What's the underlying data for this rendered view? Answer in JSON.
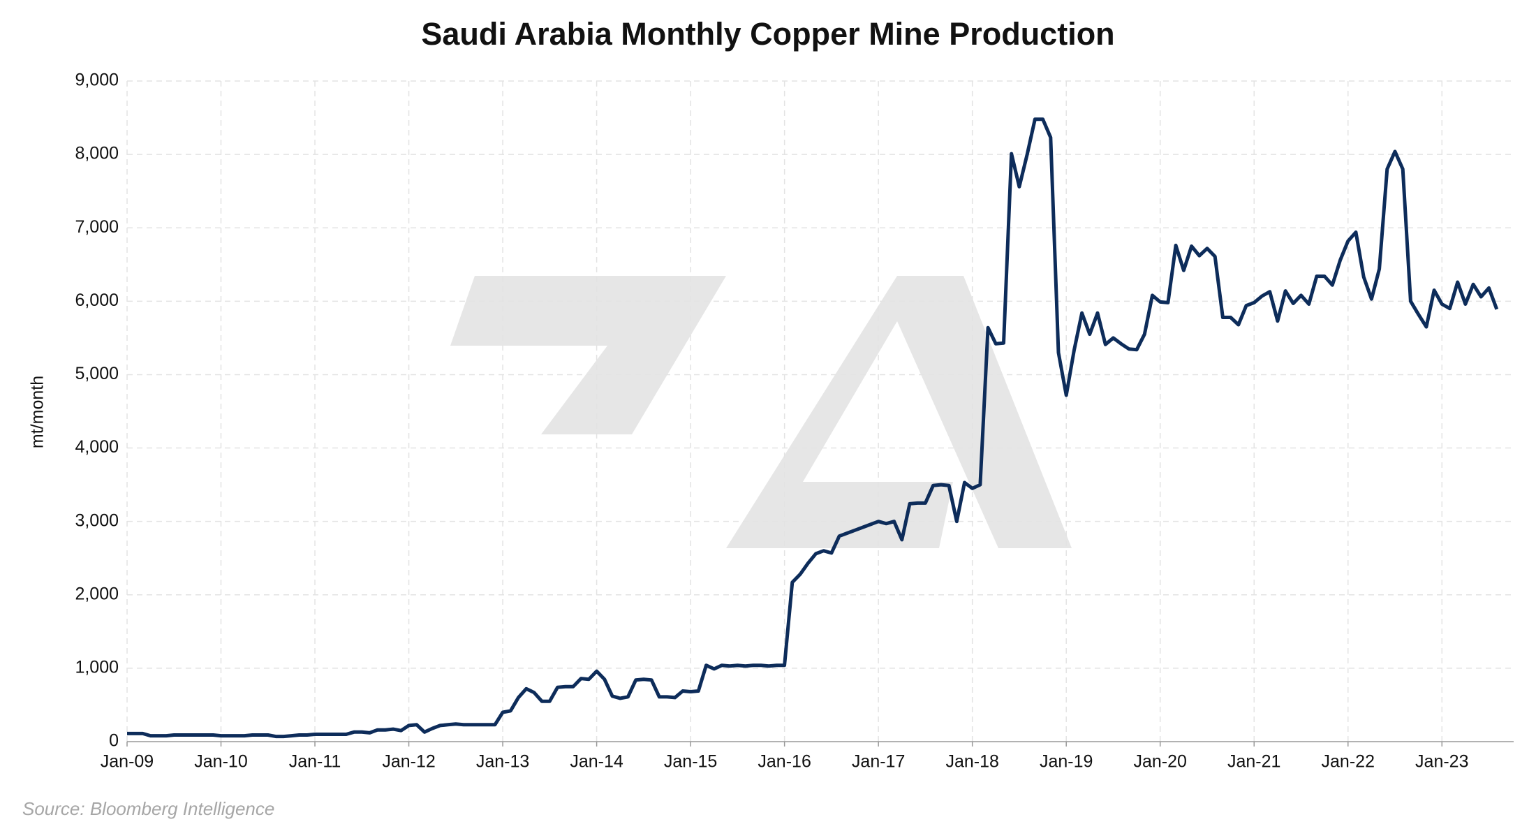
{
  "chart_data": {
    "type": "line",
    "title": "Saudi Arabia Monthly Copper Mine Production",
    "ylabel": "mt/month",
    "source": "Source: Bloomberg Intelligence",
    "color": "#0d2c5a",
    "grid": true,
    "ylim": [
      0,
      9000
    ],
    "yticks": [
      0,
      {
        "value": 1000,
        "label": "1,000"
      },
      {
        "value": 2000,
        "label": "2,000"
      },
      {
        "value": 3000,
        "label": "3,000"
      },
      {
        "value": 4000,
        "label": "4,000"
      },
      {
        "value": 5000,
        "label": "5,000"
      },
      {
        "value": 6000,
        "label": "6,000"
      },
      {
        "value": 7000,
        "label": "7,000"
      },
      {
        "value": 8000,
        "label": "8,000"
      },
      {
        "value": 9000,
        "label": "9,000"
      }
    ],
    "categories": [
      "Jan-09",
      null,
      null,
      null,
      null,
      null,
      null,
      null,
      null,
      null,
      null,
      null,
      "Jan-10",
      null,
      null,
      null,
      null,
      null,
      null,
      null,
      null,
      null,
      null,
      null,
      "Jan-11",
      null,
      null,
      null,
      null,
      null,
      null,
      null,
      null,
      null,
      null,
      null,
      "Jan-12",
      null,
      null,
      null,
      null,
      null,
      null,
      null,
      null,
      null,
      null,
      null,
      "Jan-13",
      null,
      null,
      null,
      null,
      null,
      null,
      null,
      null,
      null,
      null,
      null,
      "Jan-14",
      null,
      null,
      null,
      null,
      null,
      null,
      null,
      null,
      null,
      null,
      null,
      "Jan-15",
      null,
      null,
      null,
      null,
      null,
      null,
      null,
      null,
      null,
      null,
      null,
      "Jan-16",
      null,
      null,
      null,
      null,
      null,
      null,
      null,
      null,
      null,
      null,
      null,
      "Jan-17",
      null,
      null,
      null,
      null,
      null,
      null,
      null,
      null,
      null,
      null,
      null,
      "Jan-18",
      null,
      null,
      null,
      null,
      null,
      null,
      null,
      null,
      null,
      null,
      null,
      "Jan-19",
      null,
      null,
      null,
      null,
      null,
      null,
      null,
      null,
      null,
      null,
      null,
      "Jan-20",
      null,
      null,
      null,
      null,
      null,
      null,
      null,
      null,
      null,
      null,
      null,
      "Jan-21",
      null,
      null,
      null,
      null,
      null,
      null,
      null,
      null,
      null,
      null,
      null,
      "Jan-22",
      null,
      null,
      null,
      null,
      null,
      null,
      null,
      null,
      null,
      null,
      null,
      "Jan-23",
      null,
      null,
      null,
      null,
      null,
      null,
      null
    ],
    "values": [
      110,
      110,
      110,
      80,
      80,
      80,
      90,
      90,
      90,
      90,
      90,
      90,
      80,
      80,
      80,
      80,
      90,
      90,
      90,
      70,
      70,
      80,
      90,
      90,
      100,
      100,
      100,
      100,
      100,
      130,
      130,
      120,
      160,
      160,
      170,
      150,
      220,
      230,
      130,
      180,
      220,
      230,
      240,
      230,
      230,
      230,
      230,
      230,
      400,
      420,
      600,
      720,
      670,
      550,
      550,
      740,
      750,
      750,
      860,
      850,
      960,
      850,
      620,
      590,
      610,
      840,
      850,
      840,
      610,
      610,
      600,
      690,
      680,
      690,
      1040,
      990,
      1040,
      1030,
      1040,
      1030,
      1040,
      1040,
      1030,
      1040,
      1040,
      2170,
      2280,
      2430,
      2560,
      2600,
      2570,
      2800,
      2840,
      2880,
      2920,
      2960,
      3000,
      2970,
      3000,
      2750,
      3240,
      3250,
      3250,
      3490,
      3500,
      3490,
      3000,
      3530,
      3450,
      3500,
      5640,
      5420,
      5430,
      8010,
      7560,
      8000,
      8480,
      8480,
      8230,
      5300,
      4720,
      5330,
      5840,
      5550,
      5840,
      5410,
      5500,
      5420,
      5350,
      5340,
      5550,
      6080,
      5990,
      5980,
      6760,
      6420,
      6750,
      6620,
      6720,
      6610,
      5780,
      5780,
      5680,
      5940,
      5980,
      6070,
      6130,
      5730,
      6140,
      5970,
      6080,
      5960,
      6340,
      6340,
      6220,
      6560,
      6820,
      6940,
      6330,
      6030,
      6440,
      7800,
      8040,
      7800,
      6000,
      5820,
      5650,
      6150,
      5960,
      5900,
      6260,
      5960,
      6230,
      6060,
      6180,
      5890
    ]
  }
}
